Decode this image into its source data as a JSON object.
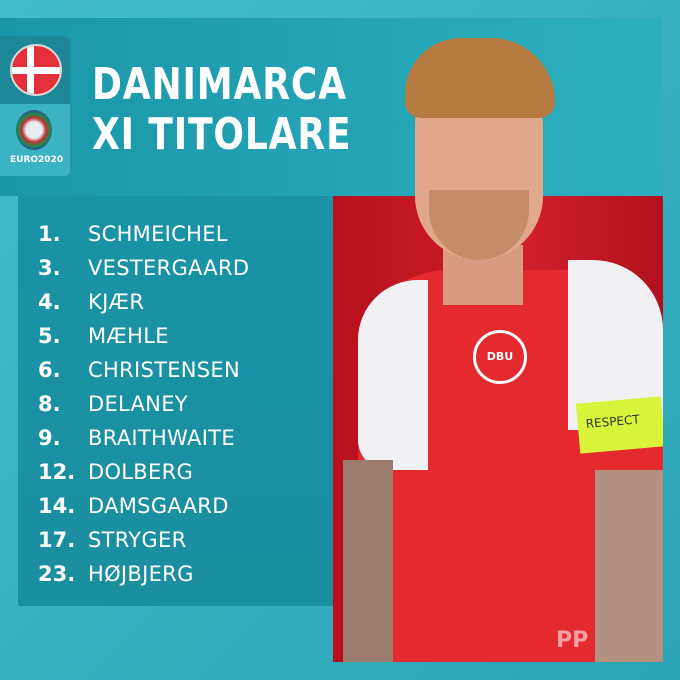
{
  "header": {
    "title_line1": "DANIMARCA",
    "title_line2": "XI TITOLARE",
    "tournament_logo": "EURO2020"
  },
  "colors": {
    "teal": "#2aa4b6",
    "dark_teal": "#1a93a6",
    "red": "#d01e2b",
    "flag_red": "#e3303a"
  },
  "lineup": [
    {
      "number": "1.",
      "name": "SCHMEICHEL"
    },
    {
      "number": "3.",
      "name": "VESTERGAARD"
    },
    {
      "number": "4.",
      "name": "KJÆR"
    },
    {
      "number": "5.",
      "name": "MÆHLE"
    },
    {
      "number": "6.",
      "name": "CHRISTENSEN"
    },
    {
      "number": "8.",
      "name": "DELANEY"
    },
    {
      "number": "9.",
      "name": "BRAITHWAITE"
    },
    {
      "number": "12.",
      "name": "DOLBERG"
    },
    {
      "number": "14.",
      "name": "DAMSGAARD"
    },
    {
      "number": "17.",
      "name": "STRYGER"
    },
    {
      "number": "23.",
      "name": "HØJBJERG"
    }
  ],
  "photo": {
    "armband_text": "RESPECT",
    "crest_text": "DBU"
  },
  "watermark": "PP"
}
